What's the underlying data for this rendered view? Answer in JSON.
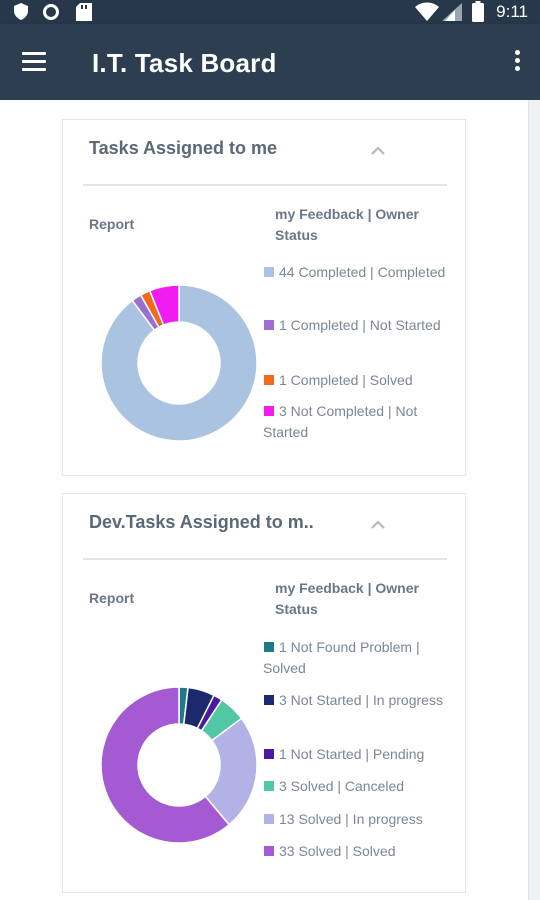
{
  "status_bar": {
    "time": "9:11"
  },
  "app_bar": {
    "title": "I.T. Task Board"
  },
  "cards": [
    {
      "title": "Tasks Assigned to me",
      "report_label": "Report",
      "legend_title": "my Feedback | Owner Status",
      "chart_data": {
        "type": "pie",
        "categories": [
          "Completed | Completed",
          "Completed | Not Started",
          "Completed | Solved",
          "Not Completed | Not Started"
        ],
        "values": [
          44,
          1,
          1,
          3
        ],
        "colors": [
          "#a9c3e0",
          "#9a6fd1",
          "#f26a1b",
          "#f21bf0"
        ]
      },
      "legend": [
        {
          "text": "44 Completed | Completed",
          "color": "#a9c3e0"
        },
        {
          "text": "1 Completed | Not Started",
          "color": "#9a6fd1"
        },
        {
          "text": "1 Completed | Solved",
          "color": "#f26a1b"
        },
        {
          "text": "3 Not Completed | Not Started",
          "color": "#f21bf0"
        }
      ]
    },
    {
      "title": "Dev.Tasks Assigned to m..",
      "report_label": "Report",
      "legend_title": "my Feedback | Owner Status",
      "chart_data": {
        "type": "pie",
        "categories": [
          "Not Found Problem | Solved",
          "Not Started | In progress",
          "Not Started | Pending",
          "Solved | Canceled",
          "Solved | In progress",
          "Solved | Solved"
        ],
        "values": [
          1,
          3,
          1,
          3,
          13,
          33
        ],
        "colors": [
          "#1f7a86",
          "#1b2a6b",
          "#4b1aa0",
          "#52c7a4",
          "#b3b2e6",
          "#a45ad2"
        ]
      },
      "legend": [
        {
          "text": "1 Not Found Problem | Solved",
          "color": "#1f7a86"
        },
        {
          "text": "3 Not Started | In progress",
          "color": "#1b2a6b"
        },
        {
          "text": "1 Not Started | Pending",
          "color": "#4b1aa0"
        },
        {
          "text": "3 Solved | Canceled",
          "color": "#52c7a4"
        },
        {
          "text": "13 Solved | In progress",
          "color": "#b3b2e6"
        },
        {
          "text": "33 Solved | Solved",
          "color": "#a45ad2"
        }
      ]
    }
  ]
}
